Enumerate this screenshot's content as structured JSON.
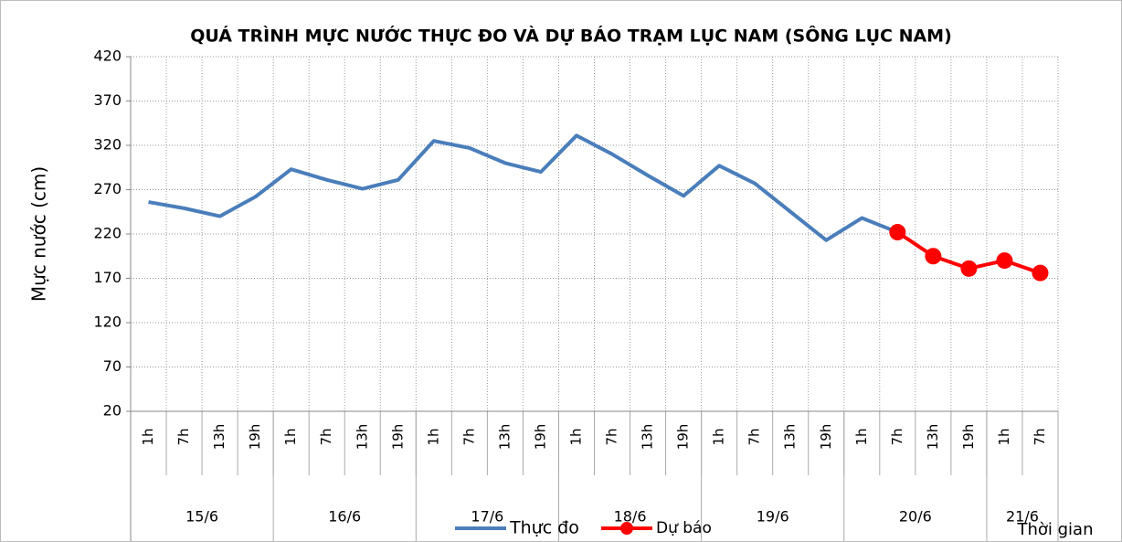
{
  "chart_data": {
    "type": "line",
    "title": "QUÁ TRÌNH MỰC NƯỚC THỰC ĐO VÀ DỰ BÁO TRẠM LỤC NAM (SÔNG LỤC NAM)",
    "y_label": "Mực nước (cm)",
    "x_label": "Thời gian",
    "categories": [
      "1h",
      "7h",
      "13h",
      "19h",
      "1h",
      "7h",
      "13h",
      "19h",
      "1h",
      "7h",
      "13h",
      "19h",
      "1h",
      "7h",
      "13h",
      "19h",
      "1h",
      "7h",
      "13h",
      "19h",
      "1h",
      "7h",
      "13h",
      "19h",
      "1h",
      "7h"
    ],
    "groups": [
      {
        "label": "15/6",
        "span": 4
      },
      {
        "label": "16/6",
        "span": 4
      },
      {
        "label": "17/6",
        "span": 4
      },
      {
        "label": "18/6",
        "span": 4
      },
      {
        "label": "19/6",
        "span": 4
      },
      {
        "label": "20/6",
        "span": 4
      },
      {
        "label": "21/6",
        "span": 2
      }
    ],
    "series": [
      {
        "name": "Thực đo",
        "color": "#4a7ebb",
        "marker": false,
        "values": [
          256,
          249,
          240,
          262,
          293,
          281,
          271,
          281,
          325,
          317,
          300,
          290,
          331,
          310,
          286,
          263,
          297,
          277,
          245,
          213,
          238,
          222,
          null,
          null,
          null,
          null
        ]
      },
      {
        "name": "Dự báo",
        "color": "#ff0000",
        "marker": true,
        "values": [
          null,
          null,
          null,
          null,
          null,
          null,
          null,
          null,
          null,
          null,
          null,
          null,
          null,
          null,
          null,
          null,
          null,
          null,
          null,
          null,
          null,
          222,
          195,
          181,
          190,
          176
        ]
      }
    ],
    "ylim": [
      20,
      420
    ],
    "yticks": [
      20,
      70,
      120,
      170,
      220,
      270,
      320,
      370,
      420
    ],
    "grid": true
  }
}
